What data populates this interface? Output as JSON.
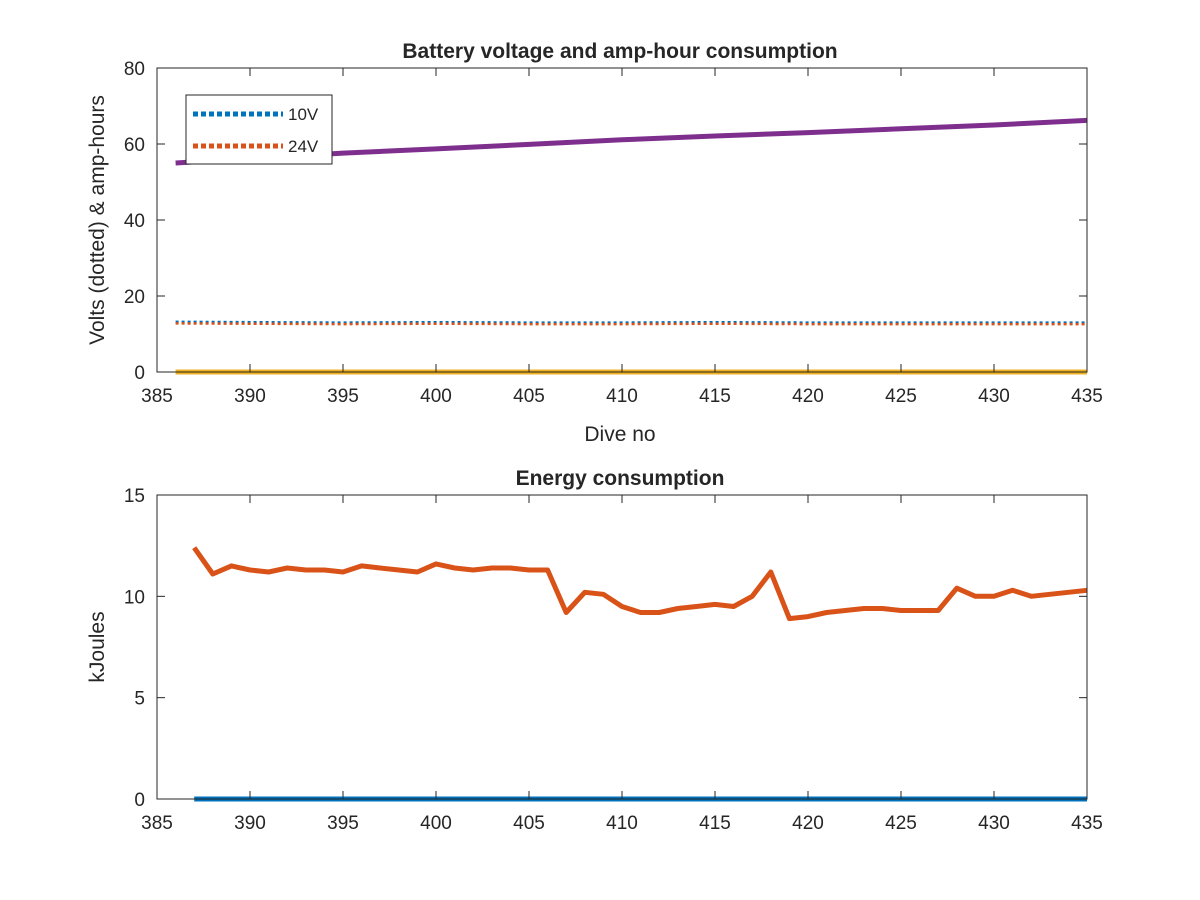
{
  "chart_data": [
    {
      "type": "line",
      "title": "Battery voltage and amp-hour consumption",
      "xlabel": "Dive no",
      "ylabel": "Volts (dotted) & amp-hours",
      "xlim": [
        385,
        435
      ],
      "ylim": [
        0,
        80
      ],
      "xticks": [
        385,
        390,
        395,
        400,
        405,
        410,
        415,
        420,
        425,
        430,
        435
      ],
      "yticks": [
        0,
        20,
        40,
        60,
        80
      ],
      "legend": {
        "position": "top-left",
        "entries": [
          "10V",
          "24V"
        ]
      },
      "grid": false,
      "series": [
        {
          "name": "10V",
          "style": "dotted",
          "color": "#0072BD",
          "x": [
            386,
            390,
            395,
            400,
            405,
            410,
            415,
            420,
            425,
            430,
            435
          ],
          "y": [
            13.2,
            13.1,
            13.0,
            13.1,
            13.0,
            13.0,
            13.1,
            13.0,
            13.0,
            13.0,
            13.0
          ]
        },
        {
          "name": "24V",
          "style": "dotted",
          "color": "#D95319",
          "x": [
            386,
            390,
            395,
            400,
            405,
            410,
            415,
            420,
            425,
            430,
            435
          ],
          "y": [
            12.8,
            12.7,
            12.6,
            12.7,
            12.6,
            12.6,
            12.7,
            12.6,
            12.6,
            12.6,
            12.6
          ]
        },
        {
          "style": "solid",
          "color": "#EDB120",
          "x": [
            386,
            435
          ],
          "y": [
            0,
            0
          ]
        },
        {
          "style": "solid",
          "color": "#7E2F8E",
          "x": [
            386,
            395,
            400,
            405,
            410,
            415,
            420,
            425,
            430,
            435
          ],
          "y": [
            55,
            57.6,
            58.7,
            59.9,
            61.1,
            62.1,
            63.0,
            64.0,
            65.0,
            66.2
          ]
        }
      ]
    },
    {
      "type": "line",
      "title": "Energy consumption",
      "xlabel": "",
      "ylabel": "kJoules",
      "xlim": [
        385,
        435
      ],
      "ylim": [
        0,
        15
      ],
      "xticks": [
        385,
        390,
        395,
        400,
        405,
        410,
        415,
        420,
        425,
        430,
        435
      ],
      "yticks": [
        0,
        5,
        10,
        15
      ],
      "grid": false,
      "series": [
        {
          "style": "solid",
          "color": "#D95319",
          "x": [
            387,
            388,
            389,
            390,
            391,
            392,
            393,
            394,
            395,
            396,
            397,
            398,
            399,
            400,
            401,
            402,
            403,
            404,
            405,
            406,
            407,
            408,
            409,
            410,
            411,
            412,
            413,
            414,
            415,
            416,
            417,
            418,
            419,
            420,
            421,
            422,
            423,
            424,
            425,
            426,
            427,
            428,
            429,
            430,
            431,
            432,
            433,
            434,
            435
          ],
          "y": [
            12.4,
            11.1,
            11.5,
            11.3,
            11.2,
            11.4,
            11.3,
            11.3,
            11.2,
            11.5,
            11.4,
            11.3,
            11.2,
            11.6,
            11.4,
            11.3,
            11.4,
            11.4,
            11.3,
            11.3,
            9.2,
            10.2,
            10.1,
            9.5,
            9.2,
            9.2,
            9.4,
            9.5,
            9.6,
            9.5,
            10.0,
            11.2,
            8.9,
            9.0,
            9.2,
            9.3,
            9.4,
            9.4,
            9.3,
            9.3,
            9.3,
            10.4,
            10.0,
            10.0,
            10.3,
            10.0,
            10.1,
            10.2,
            10.3
          ]
        },
        {
          "style": "solid",
          "color": "#0072BD",
          "x": [
            387,
            435
          ],
          "y": [
            0,
            0
          ]
        }
      ]
    }
  ]
}
